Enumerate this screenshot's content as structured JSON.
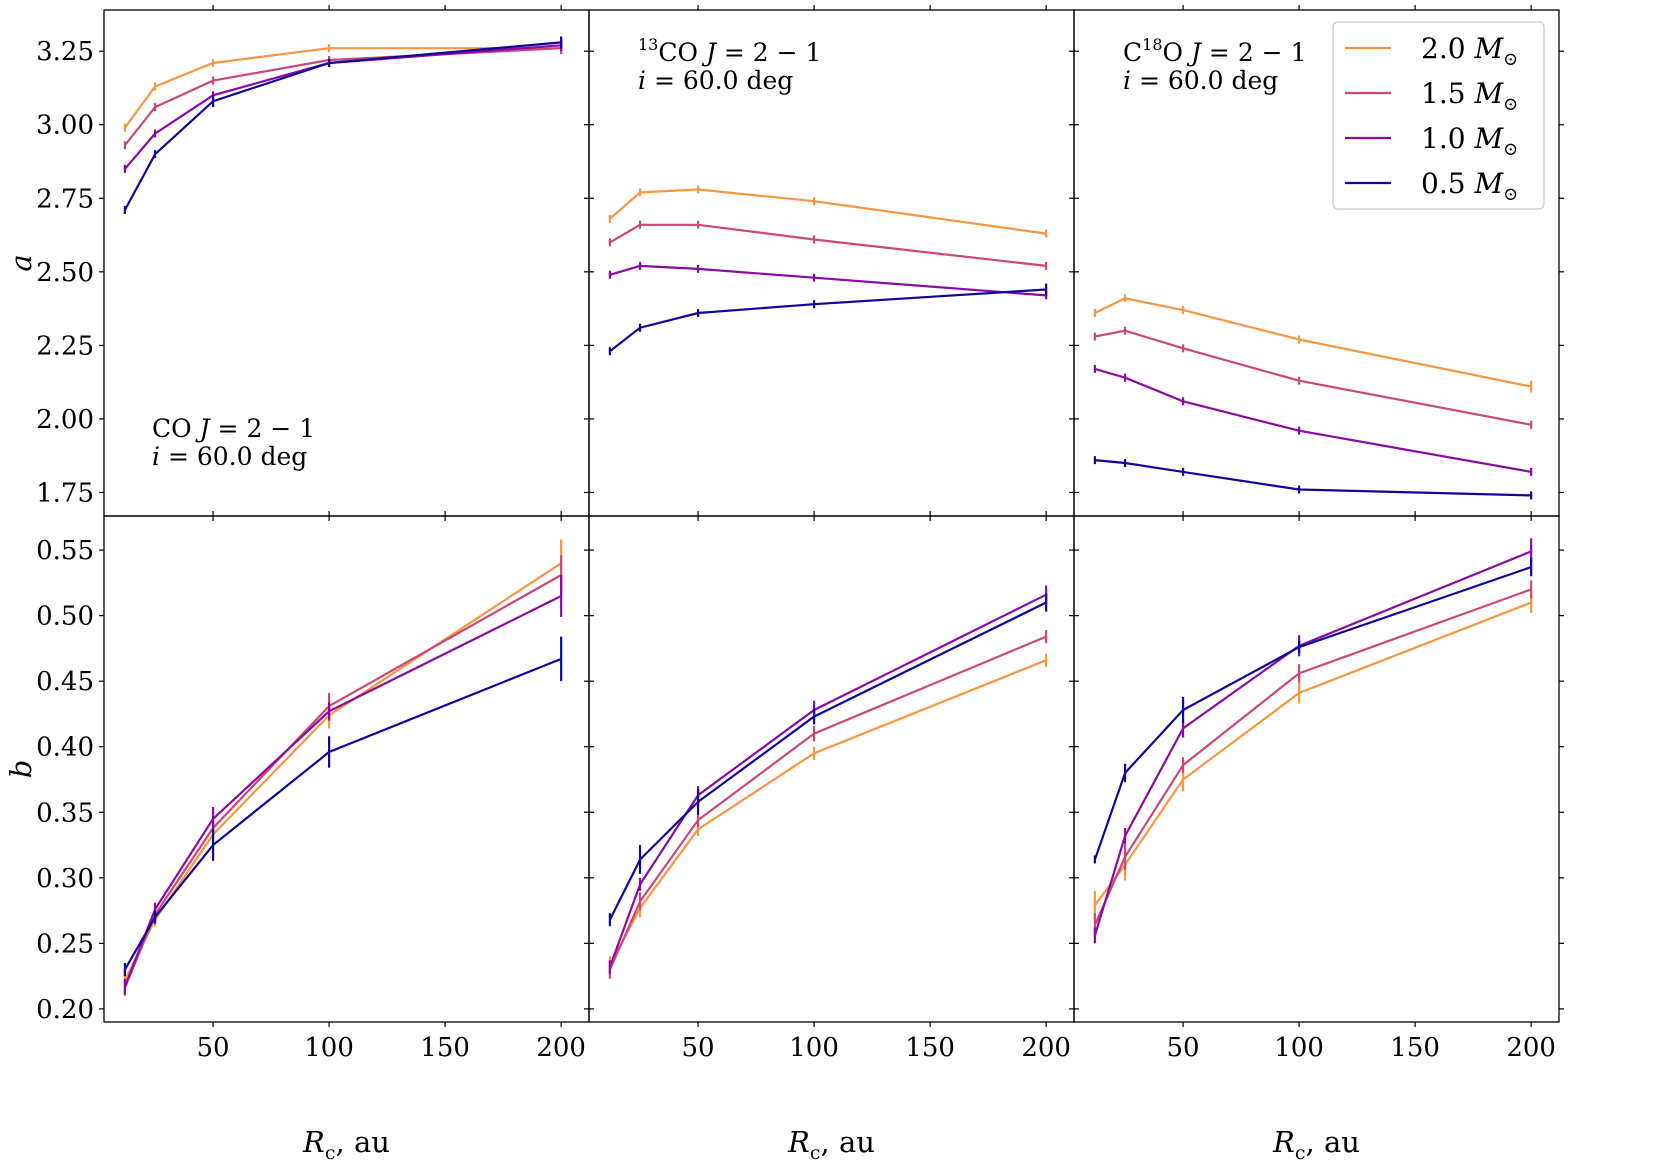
{
  "colors": {
    "2.0": "#f8963f",
    "1.5": "#cc4778",
    "1.0": "#8b0aa5",
    "0.5": "#10079b"
  },
  "legend": {
    "placement": "top-right",
    "entries": [
      {
        "mass": "2.0",
        "unit": "M",
        "sub": "⊙"
      },
      {
        "mass": "1.5",
        "unit": "M",
        "sub": "⊙"
      },
      {
        "mass": "1.0",
        "unit": "M",
        "sub": "⊙"
      },
      {
        "mass": "0.5",
        "unit": "M",
        "sub": "⊙"
      }
    ]
  },
  "axes": {
    "x_label": {
      "main": "R",
      "sub": "c",
      "rest": ", au"
    },
    "x_ticks": [
      50,
      100,
      150,
      200
    ],
    "x_range": [
      3,
      212
    ],
    "row_a": {
      "ylabel": "a",
      "ylim": [
        1.67,
        3.39
      ],
      "ticks": [
        "1.75",
        "2.00",
        "2.25",
        "2.50",
        "2.75",
        "3.00",
        "3.25"
      ]
    },
    "row_b": {
      "ylabel": "b",
      "ylim": [
        0.19,
        0.576
      ],
      "ticks": [
        "0.20",
        "0.25",
        "0.30",
        "0.35",
        "0.40",
        "0.45",
        "0.50",
        "0.55"
      ]
    }
  },
  "chart_data": [
    {
      "type": "line",
      "panel": "a-CO",
      "annotation": {
        "line1": {
          "pre": "CO ",
          "italic": "J",
          "post": " = 2 − 1"
        },
        "line2": {
          "italic": "i",
          "post": " = 60.0 deg"
        }
      },
      "series": [
        {
          "name": "2.0",
          "x": [
            12,
            25,
            50,
            100,
            200
          ],
          "y": [
            2.99,
            3.13,
            3.21,
            3.26,
            3.26
          ],
          "err": [
            0.01,
            0.01,
            0.01,
            0.01,
            0.02
          ]
        },
        {
          "name": "1.5",
          "x": [
            12,
            25,
            50,
            100,
            200
          ],
          "y": [
            2.93,
            3.06,
            3.15,
            3.22,
            3.26
          ],
          "err": [
            0.01,
            0.01,
            0.01,
            0.01,
            0.02
          ]
        },
        {
          "name": "1.0",
          "x": [
            12,
            25,
            50,
            100,
            200
          ],
          "y": [
            2.85,
            2.97,
            3.1,
            3.21,
            3.27
          ],
          "err": [
            0.01,
            0.01,
            0.01,
            0.01,
            0.02
          ]
        },
        {
          "name": "0.5",
          "x": [
            12,
            25,
            50,
            100,
            200
          ],
          "y": [
            2.71,
            2.9,
            3.08,
            3.21,
            3.28
          ],
          "err": [
            0.01,
            0.01,
            0.02,
            0.01,
            0.02
          ]
        }
      ]
    },
    {
      "type": "line",
      "panel": "a-13CO",
      "annotation": {
        "line1": {
          "sup": "13",
          "pre": "CO ",
          "italic": "J",
          "post": " = 2 − 1"
        },
        "line2": {
          "italic": "i",
          "post": " = 60.0 deg"
        }
      },
      "series": [
        {
          "name": "2.0",
          "x": [
            12,
            25,
            50,
            100,
            200
          ],
          "y": [
            2.68,
            2.77,
            2.78,
            2.74,
            2.63
          ],
          "err": [
            0.01,
            0.01,
            0.01,
            0.01,
            0.01
          ]
        },
        {
          "name": "1.5",
          "x": [
            12,
            25,
            50,
            100,
            200
          ],
          "y": [
            2.6,
            2.66,
            2.66,
            2.61,
            2.52
          ],
          "err": [
            0.01,
            0.01,
            0.01,
            0.01,
            0.01
          ]
        },
        {
          "name": "1.0",
          "x": [
            12,
            25,
            50,
            100,
            200
          ],
          "y": [
            2.49,
            2.52,
            2.51,
            2.48,
            2.42
          ],
          "err": [
            0.01,
            0.01,
            0.01,
            0.01,
            0.01
          ]
        },
        {
          "name": "0.5",
          "x": [
            12,
            25,
            50,
            100,
            200
          ],
          "y": [
            2.23,
            2.31,
            2.36,
            2.39,
            2.44
          ],
          "err": [
            0.01,
            0.01,
            0.01,
            0.01,
            0.02
          ]
        }
      ]
    },
    {
      "type": "line",
      "panel": "a-C18O",
      "annotation": {
        "line1": {
          "pre": "C",
          "sup": "18",
          "post2": "O ",
          "italic": "J",
          "post": " = 2 − 1"
        },
        "line2": {
          "italic": "i",
          "post": " = 60.0 deg"
        }
      },
      "series": [
        {
          "name": "2.0",
          "x": [
            12,
            25,
            50,
            100,
            200
          ],
          "y": [
            2.36,
            2.41,
            2.37,
            2.27,
            2.11
          ],
          "err": [
            0.01,
            0.01,
            0.01,
            0.01,
            0.02
          ]
        },
        {
          "name": "1.5",
          "x": [
            12,
            25,
            50,
            100,
            200
          ],
          "y": [
            2.28,
            2.3,
            2.24,
            2.13,
            1.98
          ],
          "err": [
            0.01,
            0.01,
            0.01,
            0.01,
            0.01
          ]
        },
        {
          "name": "1.0",
          "x": [
            12,
            25,
            50,
            100,
            200
          ],
          "y": [
            2.17,
            2.14,
            2.06,
            1.96,
            1.82
          ],
          "err": [
            0.01,
            0.01,
            0.01,
            0.01,
            0.01
          ]
        },
        {
          "name": "0.5",
          "x": [
            12,
            25,
            50,
            100,
            200
          ],
          "y": [
            1.86,
            1.85,
            1.82,
            1.76,
            1.74
          ],
          "err": [
            0.01,
            0.01,
            0.01,
            0.01,
            0.01
          ]
        }
      ]
    },
    {
      "type": "line",
      "panel": "b-CO",
      "series": [
        {
          "name": "2.0",
          "x": [
            12,
            25,
            50,
            100,
            200
          ],
          "y": [
            0.222,
            0.268,
            0.333,
            0.424,
            0.54
          ],
          "err": [
            0.006,
            0.005,
            0.007,
            0.01,
            0.018
          ]
        },
        {
          "name": "1.5",
          "x": [
            12,
            25,
            50,
            100,
            200
          ],
          "y": [
            0.216,
            0.272,
            0.338,
            0.431,
            0.531
          ],
          "err": [
            0.006,
            0.005,
            0.007,
            0.01,
            0.015
          ]
        },
        {
          "name": "1.0",
          "x": [
            12,
            25,
            50,
            100,
            200
          ],
          "y": [
            0.217,
            0.276,
            0.345,
            0.427,
            0.515
          ],
          "err": [
            0.006,
            0.005,
            0.009,
            0.007,
            0.016
          ]
        },
        {
          "name": "0.5",
          "x": [
            12,
            25,
            50,
            100,
            200
          ],
          "y": [
            0.23,
            0.27,
            0.325,
            0.396,
            0.467
          ],
          "err": [
            0.005,
            0.005,
            0.012,
            0.012,
            0.017
          ]
        }
      ]
    },
    {
      "type": "line",
      "panel": "b-13CO",
      "series": [
        {
          "name": "2.0",
          "x": [
            12,
            25,
            50,
            100,
            200
          ],
          "y": [
            0.233,
            0.277,
            0.337,
            0.395,
            0.466
          ],
          "err": [
            0.007,
            0.007,
            0.005,
            0.005,
            0.005
          ]
        },
        {
          "name": "1.5",
          "x": [
            12,
            25,
            50,
            100,
            200
          ],
          "y": [
            0.23,
            0.282,
            0.344,
            0.41,
            0.484
          ],
          "err": [
            0.007,
            0.007,
            0.005,
            0.006,
            0.005
          ]
        },
        {
          "name": "1.0",
          "x": [
            12,
            25,
            50,
            100,
            200
          ],
          "y": [
            0.232,
            0.295,
            0.363,
            0.428,
            0.516
          ],
          "err": [
            0.005,
            0.005,
            0.007,
            0.007,
            0.007
          ]
        },
        {
          "name": "0.5",
          "x": [
            12,
            25,
            50,
            100,
            200
          ],
          "y": [
            0.268,
            0.314,
            0.358,
            0.423,
            0.51
          ],
          "err": [
            0.005,
            0.011,
            0.01,
            0.006,
            0.007
          ]
        }
      ]
    },
    {
      "type": "line",
      "panel": "b-C18O",
      "series": [
        {
          "name": "2.0",
          "x": [
            12,
            25,
            50,
            100,
            200
          ],
          "y": [
            0.279,
            0.31,
            0.375,
            0.441,
            0.51
          ],
          "err": [
            0.011,
            0.012,
            0.009,
            0.008,
            0.008
          ]
        },
        {
          "name": "1.5",
          "x": [
            12,
            25,
            50,
            100,
            200
          ],
          "y": [
            0.264,
            0.316,
            0.386,
            0.456,
            0.52
          ],
          "err": [
            0.009,
            0.01,
            0.006,
            0.007,
            0.007
          ]
        },
        {
          "name": "1.0",
          "x": [
            12,
            25,
            50,
            100,
            200
          ],
          "y": [
            0.256,
            0.332,
            0.414,
            0.477,
            0.549
          ],
          "err": [
            0.006,
            0.006,
            0.007,
            0.008,
            0.01
          ]
        },
        {
          "name": "0.5",
          "x": [
            12,
            25,
            50,
            100,
            200
          ],
          "y": [
            0.314,
            0.38,
            0.428,
            0.476,
            0.537
          ],
          "err": [
            0.003,
            0.007,
            0.01,
            0.005,
            0.007
          ]
        }
      ]
    }
  ]
}
